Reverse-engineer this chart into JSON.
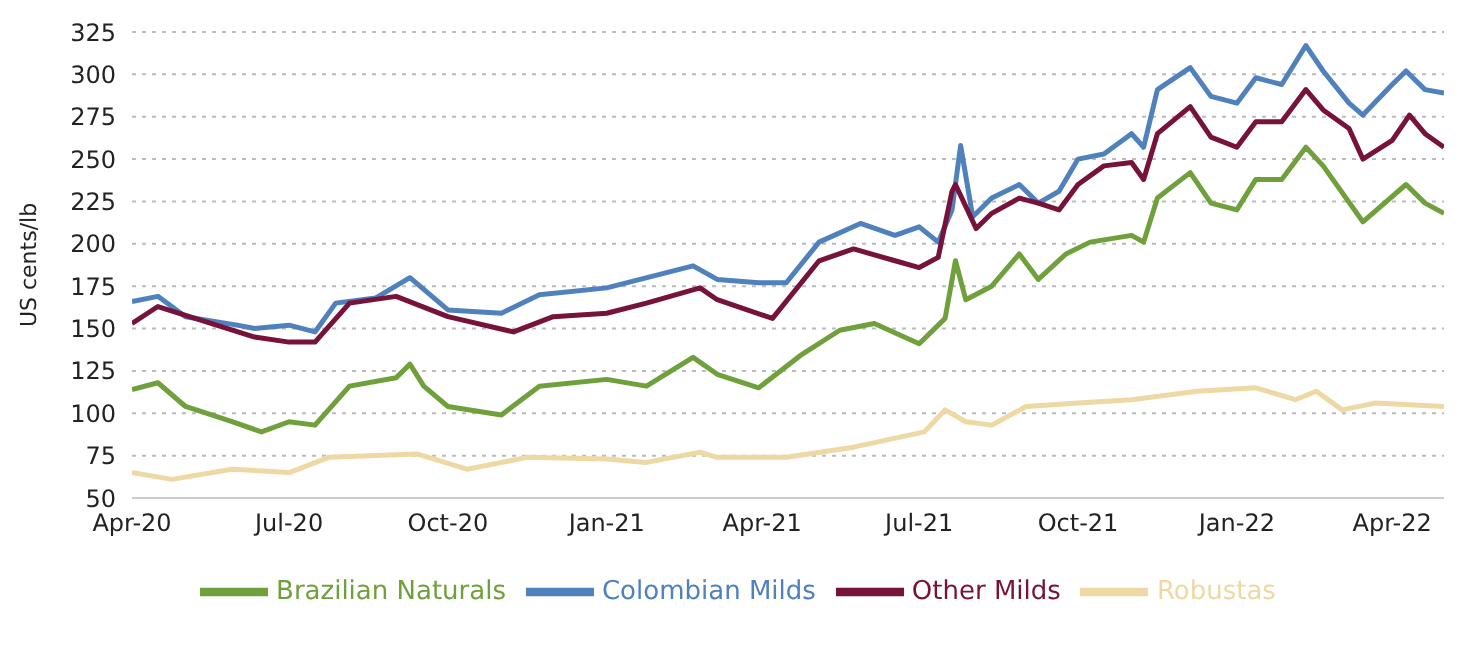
{
  "chart_data": {
    "type": "line",
    "ylabel": "US cents/lb",
    "xlim": [
      "2020-04-01",
      "2022-05-01"
    ],
    "ylim": [
      50,
      325
    ],
    "yticks": [
      50,
      75,
      100,
      125,
      150,
      175,
      200,
      225,
      250,
      275,
      300,
      325
    ],
    "xticks": [
      {
        "value": "2020-04-01",
        "label": "Apr-20"
      },
      {
        "value": "2020-07-01",
        "label": "Jul-20"
      },
      {
        "value": "2020-10-01",
        "label": "Oct-20"
      },
      {
        "value": "2021-01-01",
        "label": "Jan-21"
      },
      {
        "value": "2021-04-01",
        "label": "Apr-21"
      },
      {
        "value": "2021-07-01",
        "label": "Jul-21"
      },
      {
        "value": "2021-10-01",
        "label": "Oct-21"
      },
      {
        "value": "2022-01-01",
        "label": "Jan-22"
      },
      {
        "value": "2022-04-01",
        "label": "Apr-22"
      }
    ],
    "grid": "y",
    "legend": "bottom",
    "marker": "none",
    "line_style": "solid",
    "series": [
      {
        "name": "Colombian Milds",
        "color": "#4f81bd",
        "x": [
          "2020-04-01",
          "2020-04-16",
          "2020-05-02",
          "2020-06-01",
          "2020-06-11",
          "2020-07-01",
          "2020-07-16",
          "2020-07-28",
          "2020-08-20",
          "2020-09-09",
          "2020-10-01",
          "2020-11-01",
          "2020-11-23",
          "2021-01-01",
          "2021-02-20",
          "2021-03-06",
          "2021-03-30",
          "2021-04-15",
          "2021-05-04",
          "2021-05-28",
          "2021-06-17",
          "2021-07-01",
          "2021-07-12",
          "2021-07-20",
          "2021-07-25",
          "2021-08-01",
          "2021-08-12",
          "2021-08-28",
          "2021-09-08",
          "2021-09-20",
          "2021-10-01",
          "2021-10-16",
          "2021-11-01",
          "2021-11-08",
          "2021-11-16",
          "2021-12-05",
          "2021-12-17",
          "2022-01-01",
          "2022-01-12",
          "2022-01-27",
          "2022-02-10",
          "2022-02-20",
          "2022-03-07",
          "2022-03-15",
          "2022-04-01",
          "2022-04-09",
          "2022-04-20",
          "2022-05-01"
        ],
        "values": [
          166,
          169,
          157,
          152,
          150,
          152,
          148,
          165,
          168,
          180,
          161,
          159,
          170,
          174,
          187,
          179,
          177,
          177,
          201,
          212,
          205,
          210,
          201,
          220,
          258,
          216,
          227,
          235,
          224,
          231,
          250,
          253,
          265,
          257,
          291,
          304,
          287,
          283,
          298,
          294,
          317,
          302,
          283,
          276,
          294,
          302,
          291,
          289
        ]
      },
      {
        "name": "Other Milds",
        "color": "#77133a",
        "x": [
          "2020-04-01",
          "2020-04-16",
          "2020-06-11",
          "2020-07-01",
          "2020-07-16",
          "2020-08-05",
          "2020-09-01",
          "2020-10-01",
          "2020-11-08",
          "2020-12-01",
          "2021-01-01",
          "2021-01-24",
          "2021-02-24",
          "2021-03-06",
          "2021-04-07",
          "2021-05-04",
          "2021-05-24",
          "2021-06-17",
          "2021-07-01",
          "2021-07-12",
          "2021-07-20",
          "2021-07-22",
          "2021-08-03",
          "2021-08-12",
          "2021-08-28",
          "2021-09-08",
          "2021-09-20",
          "2021-10-01",
          "2021-10-16",
          "2021-11-01",
          "2021-11-08",
          "2021-11-16",
          "2021-12-05",
          "2021-12-17",
          "2022-01-01",
          "2022-01-12",
          "2022-01-27",
          "2022-02-10",
          "2022-02-20",
          "2022-03-07",
          "2022-03-15",
          "2022-04-01",
          "2022-04-11",
          "2022-04-20",
          "2022-05-01"
        ],
        "values": [
          153,
          163,
          145,
          142,
          142,
          165,
          169,
          157,
          148,
          157,
          159,
          165,
          174,
          167,
          156,
          190,
          197,
          190,
          186,
          192,
          231,
          235,
          209,
          218,
          227,
          224,
          220,
          235,
          246,
          248,
          238,
          265,
          281,
          263,
          257,
          272,
          272,
          291,
          279,
          268,
          250,
          261,
          276,
          265,
          257
        ]
      },
      {
        "name": "Brazilian Naturals",
        "color": "#70a03c",
        "x": [
          "2020-04-01",
          "2020-04-16",
          "2020-05-02",
          "2020-05-29",
          "2020-06-15",
          "2020-07-01",
          "2020-07-16",
          "2020-08-05",
          "2020-09-01",
          "2020-09-09",
          "2020-09-17",
          "2020-10-01",
          "2020-11-01",
          "2020-11-23",
          "2021-01-01",
          "2021-01-24",
          "2021-02-20",
          "2021-03-06",
          "2021-03-30",
          "2021-04-23",
          "2021-05-16",
          "2021-06-05",
          "2021-07-01",
          "2021-07-16",
          "2021-07-22",
          "2021-07-28",
          "2021-08-12",
          "2021-08-28",
          "2021-09-08",
          "2021-09-24",
          "2021-10-08",
          "2021-11-01",
          "2021-11-08",
          "2021-11-16",
          "2021-12-05",
          "2021-12-17",
          "2022-01-01",
          "2022-01-12",
          "2022-01-27",
          "2022-02-10",
          "2022-02-20",
          "2022-03-15",
          "2022-04-09",
          "2022-04-20",
          "2022-05-01"
        ],
        "values": [
          114,
          118,
          104,
          95,
          89,
          95,
          93,
          116,
          121,
          129,
          116,
          104,
          99,
          116,
          120,
          116,
          133,
          123,
          115,
          134,
          149,
          153,
          141,
          156,
          190,
          167,
          175,
          194,
          179,
          194,
          201,
          205,
          201,
          227,
          242,
          224,
          220,
          238,
          238,
          257,
          246,
          213,
          235,
          224,
          218
        ]
      },
      {
        "name": "Robustas",
        "color": "#eed9a4",
        "x": [
          "2020-04-01",
          "2020-04-24",
          "2020-05-29",
          "2020-07-01",
          "2020-07-24",
          "2020-09-13",
          "2020-10-12",
          "2020-11-16",
          "2021-01-01",
          "2021-01-24",
          "2021-02-24",
          "2021-03-06",
          "2021-04-15",
          "2021-05-24",
          "2021-07-04",
          "2021-07-16",
          "2021-07-28",
          "2021-08-12",
          "2021-09-01",
          "2021-10-01",
          "2021-11-01",
          "2021-12-09",
          "2022-01-12",
          "2022-02-04",
          "2022-02-16",
          "2022-03-03",
          "2022-03-22",
          "2022-05-01"
        ],
        "values": [
          65,
          61,
          67,
          65,
          74,
          76,
          67,
          74,
          73,
          71,
          77,
          74,
          74,
          80,
          89,
          102,
          95,
          93,
          104,
          106,
          108,
          113,
          115,
          108,
          113,
          102,
          106,
          104
        ]
      }
    ]
  }
}
